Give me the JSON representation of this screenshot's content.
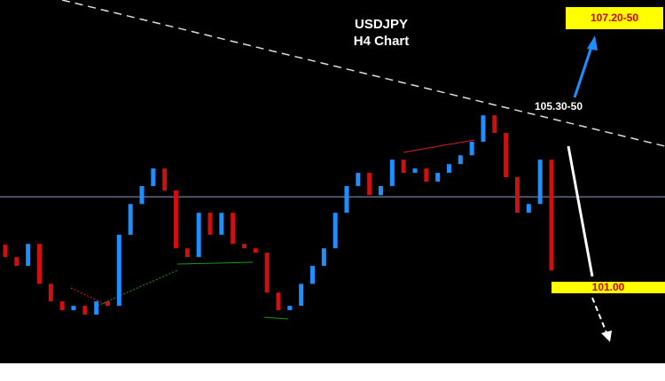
{
  "chart_data": {
    "type": "candlestick",
    "title": "USDJPY",
    "subtitle": "H4 Chart",
    "annotations": [
      "107.20-50",
      "105.30-50",
      "101.00"
    ],
    "open": [
      102.0,
      101.69,
      101.47,
      102.02,
      101.02,
      100.58,
      100.36,
      100.47,
      100.25,
      100.58,
      100.47,
      102.25,
      103.02,
      103.47,
      103.91,
      103.36,
      101.91,
      101.69,
      102.8,
      102.25,
      102.8,
      102.02,
      101.91,
      101.8,
      100.8,
      100.36,
      100.47,
      101.02,
      101.47,
      101.91,
      102.8,
      103.47,
      103.8,
      103.24,
      103.47,
      104.13,
      103.8,
      103.91,
      103.58,
      103.8,
      104.02,
      104.24,
      104.58,
      105.24,
      104.8,
      103.69,
      102.8,
      103.02,
      104.13
    ],
    "close": [
      101.69,
      101.47,
      102.02,
      101.02,
      100.58,
      100.36,
      100.47,
      100.25,
      100.58,
      100.47,
      102.25,
      103.02,
      103.47,
      103.91,
      103.36,
      101.91,
      101.69,
      102.8,
      102.25,
      102.8,
      102.02,
      101.91,
      101.8,
      100.8,
      100.36,
      100.47,
      101.02,
      101.47,
      101.91,
      102.8,
      103.47,
      103.8,
      103.24,
      103.47,
      104.13,
      103.8,
      103.91,
      103.58,
      103.8,
      104.02,
      104.24,
      104.58,
      105.24,
      104.8,
      103.69,
      102.8,
      103.02,
      104.13,
      101.36
    ],
    "up_color": "#1e8fff",
    "down_color": "#d01010",
    "hline": 103.2,
    "ylim": [
      99.03,
      108.13
    ]
  }
}
